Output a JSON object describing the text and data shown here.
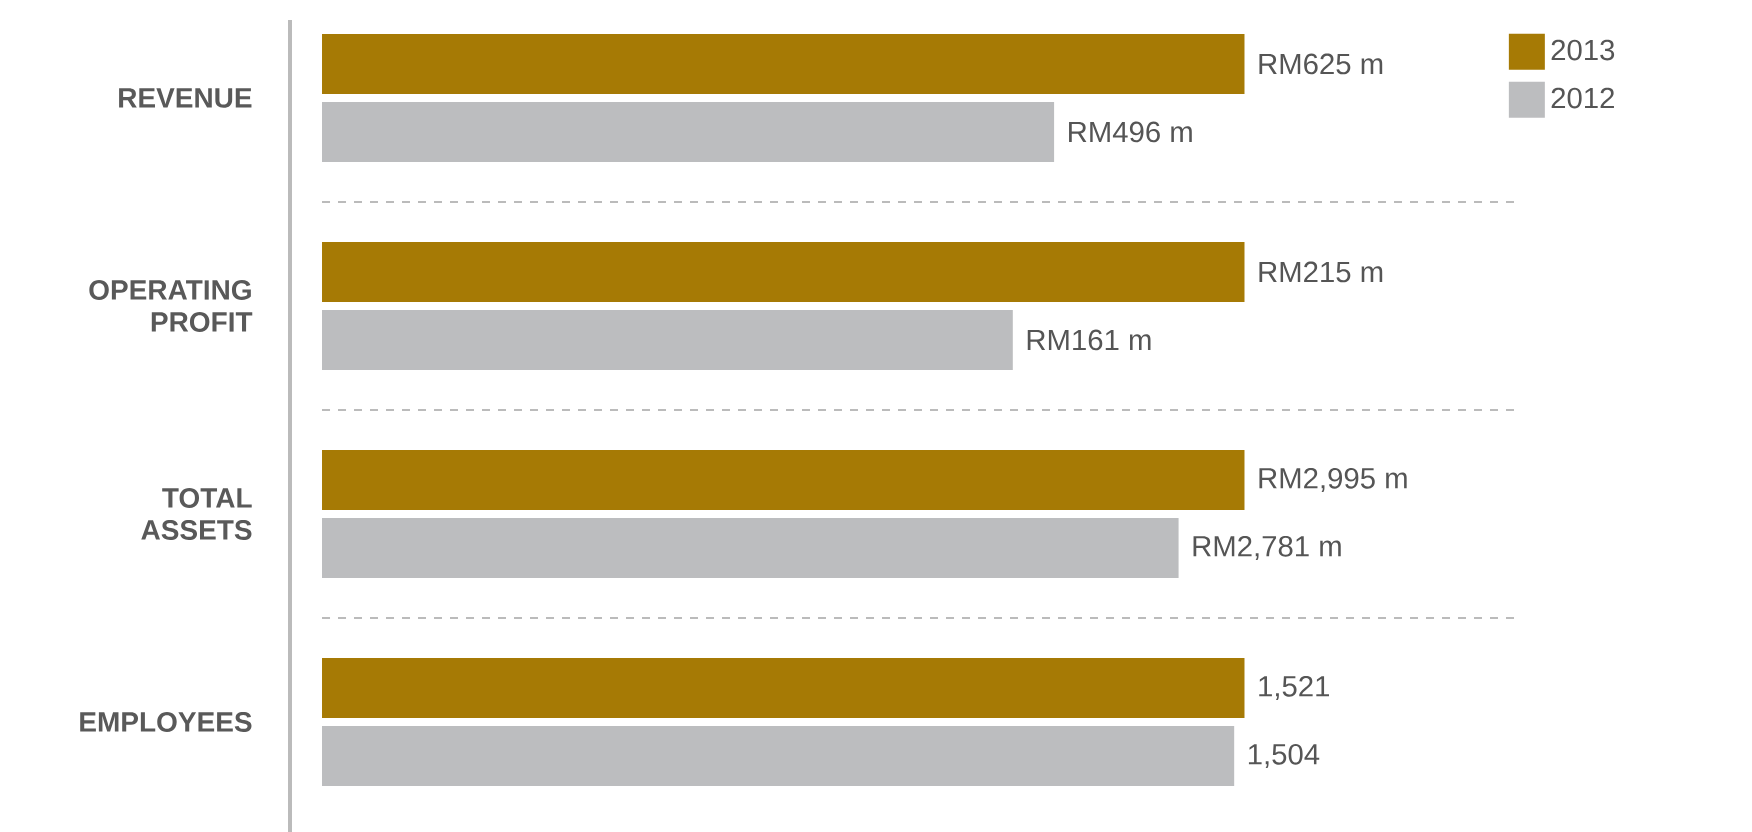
{
  "chart_data": [
    {
      "type": "bar",
      "orientation": "horizontal",
      "categories": [
        "REVENUE"
      ],
      "legend": "top right",
      "tick_labels": "y",
      "series": [
        {
          "name": "2013",
          "color": "#a67a05",
          "values": [
            625
          ],
          "value_labels": [
            "RM625 m"
          ]
        },
        {
          "name": "2012",
          "color": "#bcbdbf",
          "values": [
            496
          ],
          "value_labels": [
            "RM496 m"
          ]
        }
      ]
    },
    {
      "type": "bar",
      "orientation": "horizontal",
      "categories": [
        "OPERATING PROFIT"
      ],
      "tick_labels": "y",
      "series": [
        {
          "color": "#a67a05",
          "values": [
            215
          ],
          "value_labels": [
            "RM215 m"
          ]
        },
        {
          "color": "#bcbdbf",
          "values": [
            161
          ],
          "value_labels": [
            "RM161 m"
          ]
        }
      ]
    },
    {
      "type": "bar",
      "orientation": "horizontal",
      "categories": [
        "TOTAL ASSETS"
      ],
      "tick_labels": "y",
      "series": [
        {
          "color": "#a67a05",
          "values": [
            2995
          ],
          "value_labels": [
            "RM2,995 m"
          ]
        },
        {
          "color": "#bcbdbf",
          "values": [
            2781
          ],
          "value_labels": [
            "RM2,781 m"
          ]
        }
      ]
    },
    {
      "type": "bar",
      "orientation": "horizontal",
      "categories": [
        "EMPLOYEES"
      ],
      "tick_labels": "y",
      "series": [
        {
          "color": "#a67a05",
          "values": [
            1521
          ],
          "value_labels": [
            "1,521"
          ]
        },
        {
          "color": "#bcbdbf",
          "values": [
            1504
          ],
          "value_labels": [
            "1,504"
          ]
        }
      ]
    }
  ]
}
